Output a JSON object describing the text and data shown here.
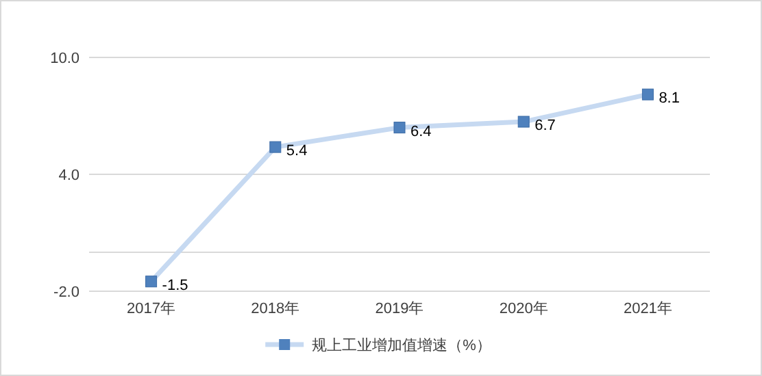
{
  "chart_data": {
    "type": "line",
    "categories": [
      "2017年",
      "2018年",
      "2019年",
      "2020年",
      "2021年"
    ],
    "series": [
      {
        "name": "规上工业增加值增速（%）",
        "color": "#c6d9f1",
        "colors": [
          "#4f81bd",
          "#4f81bd",
          "#4f81bd",
          "#4f81bd",
          "#4f81bd"
        ],
        "values": [
          -1.5,
          5.4,
          6.4,
          6.7,
          8.1
        ]
      }
    ],
    "ylim": [
      -2,
      10
    ],
    "yticks": [
      {
        "value": -2,
        "label": "-2.0"
      },
      {
        "value": 4,
        "label": "4.0"
      },
      {
        "value": 10,
        "label": "10.0"
      }
    ],
    "grid": "y",
    "legend": "bottom",
    "marker": "square",
    "line_style": "solid",
    "data_labels": true
  }
}
